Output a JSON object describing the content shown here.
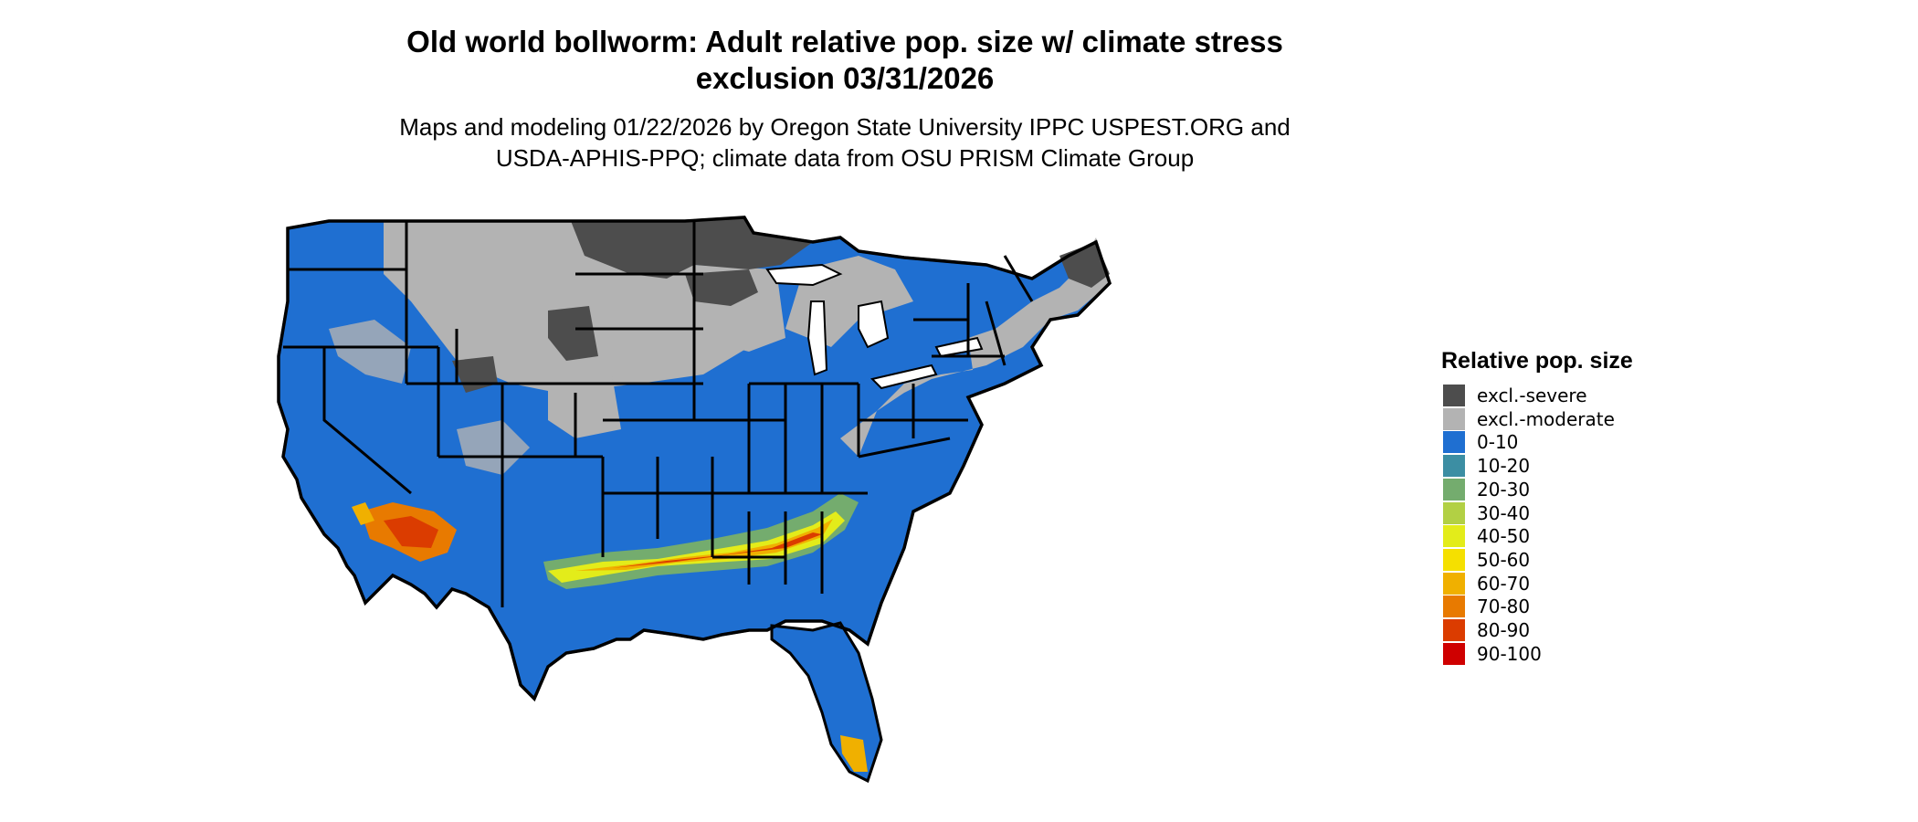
{
  "title_line1": "Old world bollworm: Adult relative pop. size w/ climate stress",
  "title_line2": "exclusion 03/31/2026",
  "subtitle_line1": "Maps and modeling 01/22/2026 by Oregon State University IPPC USPEST.ORG and",
  "subtitle_line2": "USDA-APHIS-PPQ; climate data from OSU PRISM Climate Group",
  "legend": {
    "title": "Relative pop. size",
    "items": [
      {
        "label": "excl.-severe",
        "color": "#4d4d4d"
      },
      {
        "label": "excl.-moderate",
        "color": "#b3b3b3"
      },
      {
        "label": "0-10",
        "color": "#1f6fd1"
      },
      {
        "label": "10-20",
        "color": "#3c8ea3"
      },
      {
        "label": "20-30",
        "color": "#74ac6e"
      },
      {
        "label": "30-40",
        "color": "#b2d044"
      },
      {
        "label": "40-50",
        "color": "#e3ec1a"
      },
      {
        "label": "50-60",
        "color": "#f5e000"
      },
      {
        "label": "60-70",
        "color": "#f0b000"
      },
      {
        "label": "70-80",
        "color": "#e87a00"
      },
      {
        "label": "80-90",
        "color": "#db3c00"
      },
      {
        "label": "90-100",
        "color": "#cf0000"
      }
    ]
  }
}
